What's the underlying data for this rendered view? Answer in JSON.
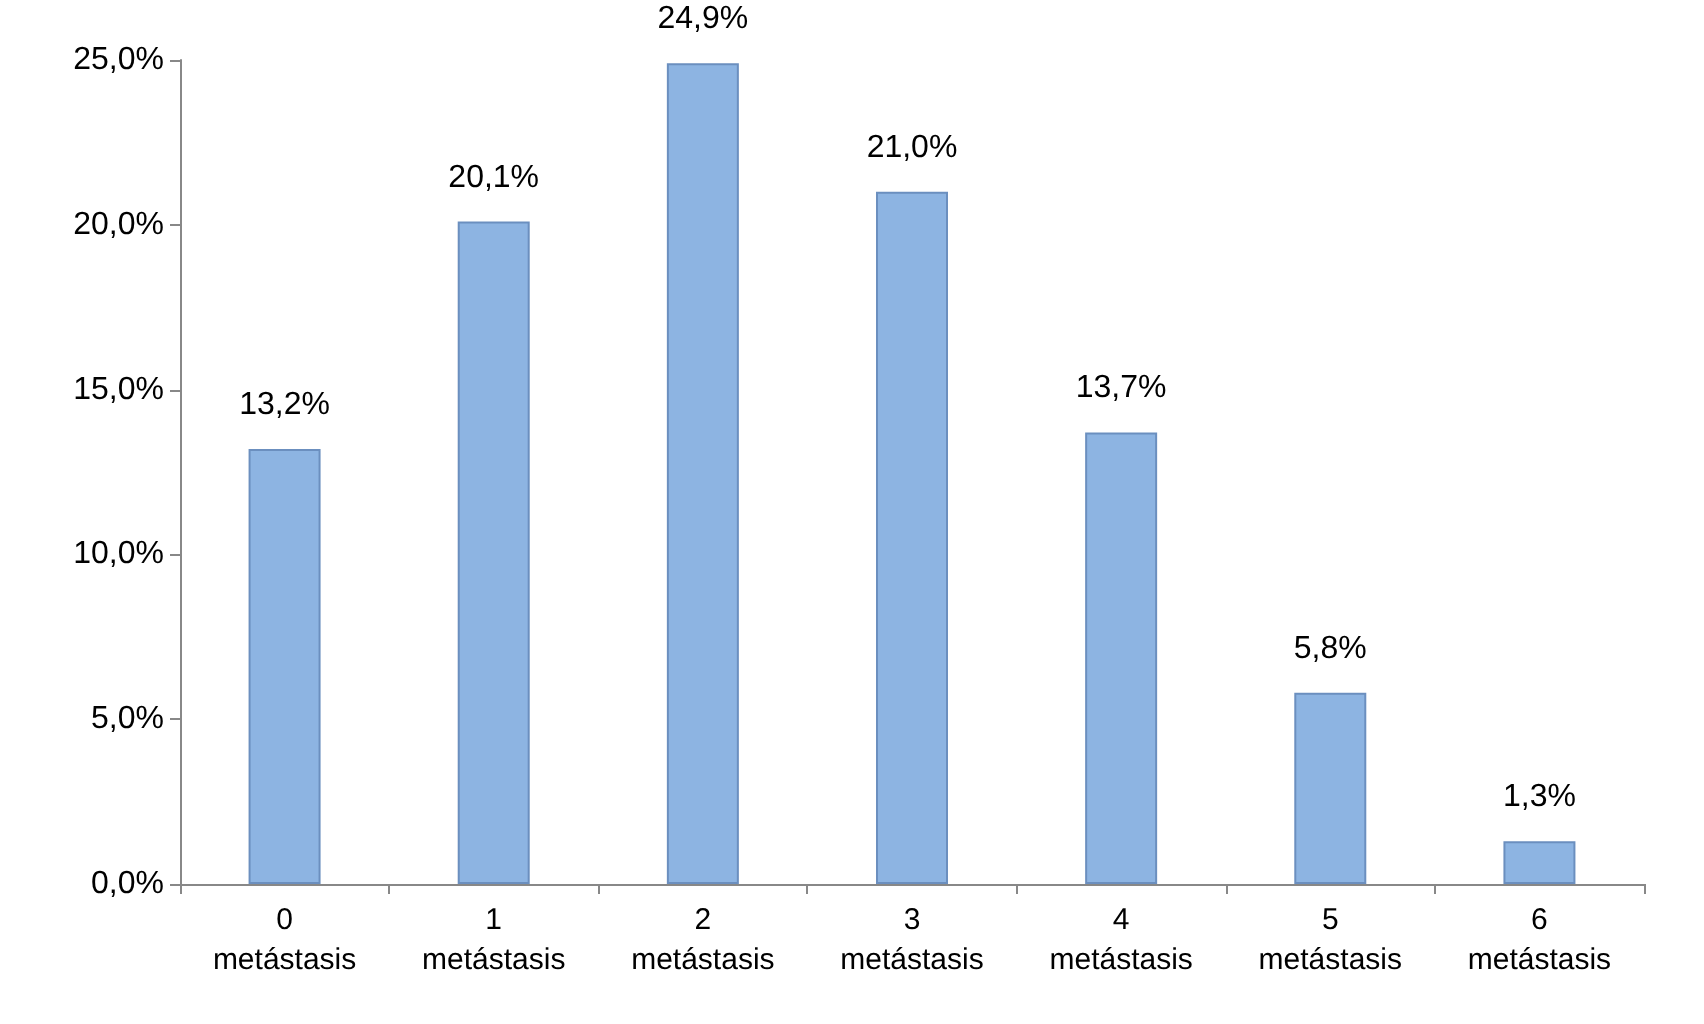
{
  "chart_data": {
    "type": "bar",
    "categories": [
      "0 metástasis",
      "1 metástasis",
      "2 metástasis",
      "3 metástasis",
      "4 metástasis",
      "5 metástasis",
      "6 metástasis"
    ],
    "values": [
      13.2,
      20.1,
      24.9,
      21.0,
      13.7,
      5.8,
      1.3
    ],
    "value_labels": [
      "13,2%",
      "20,1%",
      "24,9%",
      "21,0%",
      "13,7%",
      "5,8%",
      "1,3%"
    ],
    "color": "#8db4e2",
    "ylim": [
      0,
      25
    ],
    "yticks": [
      {
        "value": 0,
        "label": "0,0%"
      },
      {
        "value": 5,
        "label": "5,0%"
      },
      {
        "value": 10,
        "label": "10,0%"
      },
      {
        "value": 15,
        "label": "15,0%"
      },
      {
        "value": 20,
        "label": "20,0%"
      },
      {
        "value": 25,
        "label": "25,0%"
      }
    ],
    "grid": false
  }
}
